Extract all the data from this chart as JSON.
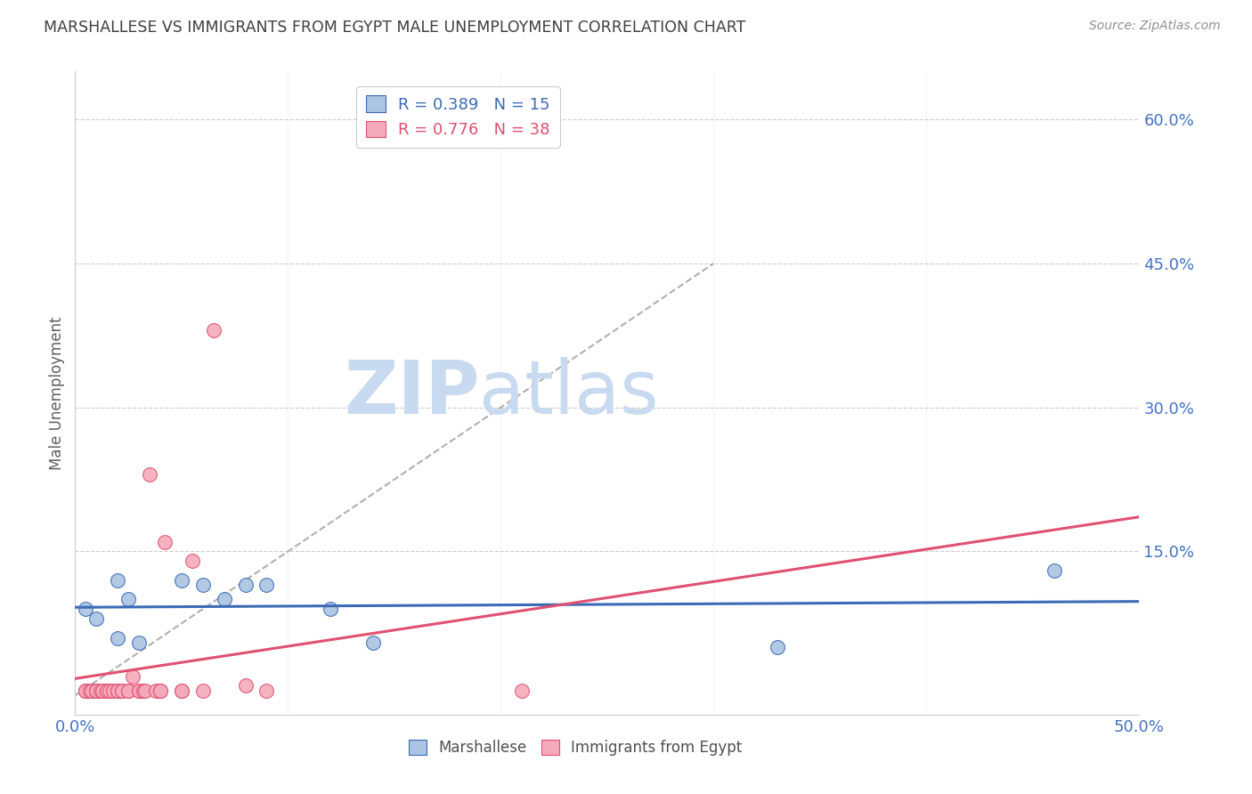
{
  "title": "MARSHALLESE VS IMMIGRANTS FROM EGYPT MALE UNEMPLOYMENT CORRELATION CHART",
  "source": "Source: ZipAtlas.com",
  "ylabel": "Male Unemployment",
  "xlim": [
    0.0,
    0.5
  ],
  "ylim": [
    -0.02,
    0.65
  ],
  "xticks": [
    0.0,
    0.1,
    0.2,
    0.3,
    0.4,
    0.5
  ],
  "xtick_labels": [
    "0.0%",
    "",
    "",
    "",
    "",
    "50.0%"
  ],
  "yticks": [
    0.0,
    0.15,
    0.3,
    0.45,
    0.6
  ],
  "ytick_labels": [
    "",
    "15.0%",
    "30.0%",
    "45.0%",
    "60.0%"
  ],
  "marshallese_x": [
    0.005,
    0.01,
    0.02,
    0.02,
    0.03,
    0.05,
    0.06,
    0.07,
    0.08,
    0.09,
    0.12,
    0.14,
    0.33,
    0.46,
    0.025
  ],
  "marshallese_y": [
    0.09,
    0.08,
    0.12,
    0.06,
    0.055,
    0.12,
    0.115,
    0.1,
    0.115,
    0.115,
    0.09,
    0.055,
    0.05,
    0.13,
    0.1
  ],
  "egypt_x": [
    0.005,
    0.005,
    0.005,
    0.007,
    0.008,
    0.01,
    0.01,
    0.01,
    0.012,
    0.013,
    0.015,
    0.015,
    0.016,
    0.018,
    0.02,
    0.02,
    0.022,
    0.022,
    0.025,
    0.025,
    0.027,
    0.03,
    0.03,
    0.032,
    0.033,
    0.035,
    0.038,
    0.04,
    0.04,
    0.042,
    0.05,
    0.05,
    0.055,
    0.06,
    0.065,
    0.08,
    0.09,
    0.21
  ],
  "egypt_y": [
    0.005,
    0.005,
    0.005,
    0.005,
    0.005,
    0.005,
    0.005,
    0.005,
    0.005,
    0.005,
    0.005,
    0.005,
    0.005,
    0.005,
    0.005,
    0.005,
    0.005,
    0.005,
    0.005,
    0.005,
    0.02,
    0.005,
    0.005,
    0.005,
    0.005,
    0.23,
    0.005,
    0.005,
    0.005,
    0.16,
    0.005,
    0.005,
    0.14,
    0.005,
    0.38,
    0.01,
    0.005,
    0.005
  ],
  "marshallese_color": "#aac4e2",
  "egypt_color": "#f5aabb",
  "marshallese_line_color": "#3b6bb5",
  "egypt_line_color": "#e05070",
  "marshallese_R": 0.389,
  "marshallese_N": 15,
  "egypt_R": 0.776,
  "egypt_N": 38,
  "background_color": "#ffffff",
  "title_color": "#404040",
  "source_color": "#909090",
  "grid_color": "#cccccc",
  "axis_label_color": "#4472c4",
  "ref_line_end_x": 0.3,
  "ref_line_end_y": 0.45,
  "watermark_zip_color": "#c8daf0",
  "watermark_atlas_color": "#c8daf0"
}
